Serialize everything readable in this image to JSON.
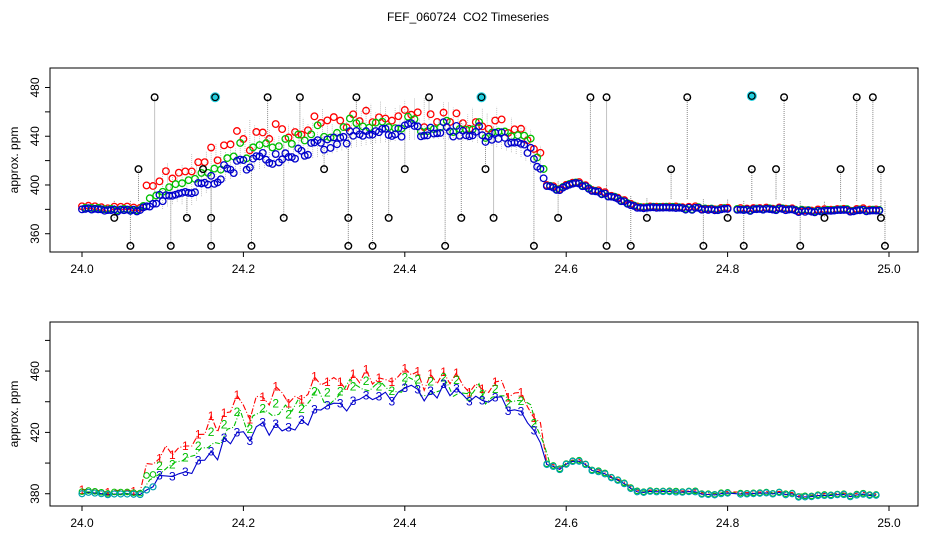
{
  "title": "FEF_060724  CO2 Timeseries",
  "colors": {
    "s1": "#ff0000",
    "s2": "#00c000",
    "s3": "#0000cc",
    "outlier": "#000000",
    "flag": "#22cfe0",
    "line": "#888888"
  },
  "chart_data": [
    {
      "type": "scatter",
      "ylabel": "approx. ppm",
      "xlabel": "",
      "xlim": [
        24.0,
        25.0
      ],
      "ylim": [
        345,
        496
      ],
      "x_ticks": [
        "24.0",
        "24.2",
        "24.4",
        "24.6",
        "24.8",
        "25.0"
      ],
      "y_ticks": [
        "360",
        "400",
        "440",
        "480"
      ],
      "outliers": [
        {
          "x": 24.04,
          "y": 373
        },
        {
          "x": 24.06,
          "y": 350
        },
        {
          "x": 24.07,
          "y": 413
        },
        {
          "x": 24.09,
          "y": 472
        },
        {
          "x": 24.11,
          "y": 350
        },
        {
          "x": 24.13,
          "y": 373
        },
        {
          "x": 24.15,
          "y": 413
        },
        {
          "x": 24.16,
          "y": 373
        },
        {
          "x": 24.16,
          "y": 350
        },
        {
          "x": 24.21,
          "y": 350
        },
        {
          "x": 24.25,
          "y": 373
        },
        {
          "x": 24.27,
          "y": 472
        },
        {
          "x": 24.23,
          "y": 472
        },
        {
          "x": 24.3,
          "y": 413
        },
        {
          "x": 24.33,
          "y": 373
        },
        {
          "x": 24.33,
          "y": 350
        },
        {
          "x": 24.34,
          "y": 472
        },
        {
          "x": 24.36,
          "y": 350
        },
        {
          "x": 24.38,
          "y": 373
        },
        {
          "x": 24.4,
          "y": 413
        },
        {
          "x": 24.43,
          "y": 472
        },
        {
          "x": 24.45,
          "y": 350
        },
        {
          "x": 24.47,
          "y": 373
        },
        {
          "x": 24.5,
          "y": 413
        },
        {
          "x": 24.51,
          "y": 373
        },
        {
          "x": 24.56,
          "y": 350
        },
        {
          "x": 24.59,
          "y": 373
        },
        {
          "x": 24.63,
          "y": 472
        },
        {
          "x": 24.65,
          "y": 472
        },
        {
          "x": 24.65,
          "y": 350
        },
        {
          "x": 24.68,
          "y": 350
        },
        {
          "x": 24.7,
          "y": 373
        },
        {
          "x": 24.73,
          "y": 413
        },
        {
          "x": 24.75,
          "y": 472
        },
        {
          "x": 24.77,
          "y": 350
        },
        {
          "x": 24.8,
          "y": 373
        },
        {
          "x": 24.82,
          "y": 350
        },
        {
          "x": 24.83,
          "y": 413
        },
        {
          "x": 24.86,
          "y": 413
        },
        {
          "x": 24.87,
          "y": 472
        },
        {
          "x": 24.89,
          "y": 350
        },
        {
          "x": 24.92,
          "y": 373
        },
        {
          "x": 24.94,
          "y": 413
        },
        {
          "x": 24.96,
          "y": 472
        },
        {
          "x": 24.98,
          "y": 472
        },
        {
          "x": 24.99,
          "y": 413
        },
        {
          "x": 24.99,
          "y": 373
        },
        {
          "x": 24.995,
          "y": 350
        }
      ],
      "flagged": [
        {
          "x": 24.165,
          "y": 472
        },
        {
          "x": 24.495,
          "y": 472
        },
        {
          "x": 24.83,
          "y": 473
        }
      ]
    },
    {
      "type": "line",
      "ylabel": "approx. ppm",
      "xlabel": "",
      "xlim": [
        24.0,
        25.0
      ],
      "ylim": [
        372,
        492
      ],
      "x_ticks": [
        "24.0",
        "24.2",
        "24.4",
        "24.6",
        "24.8",
        "25.0"
      ],
      "y_ticks": [
        "380",
        "420",
        "460"
      ],
      "series_labels": [
        "1",
        "2",
        "3"
      ]
    }
  ]
}
